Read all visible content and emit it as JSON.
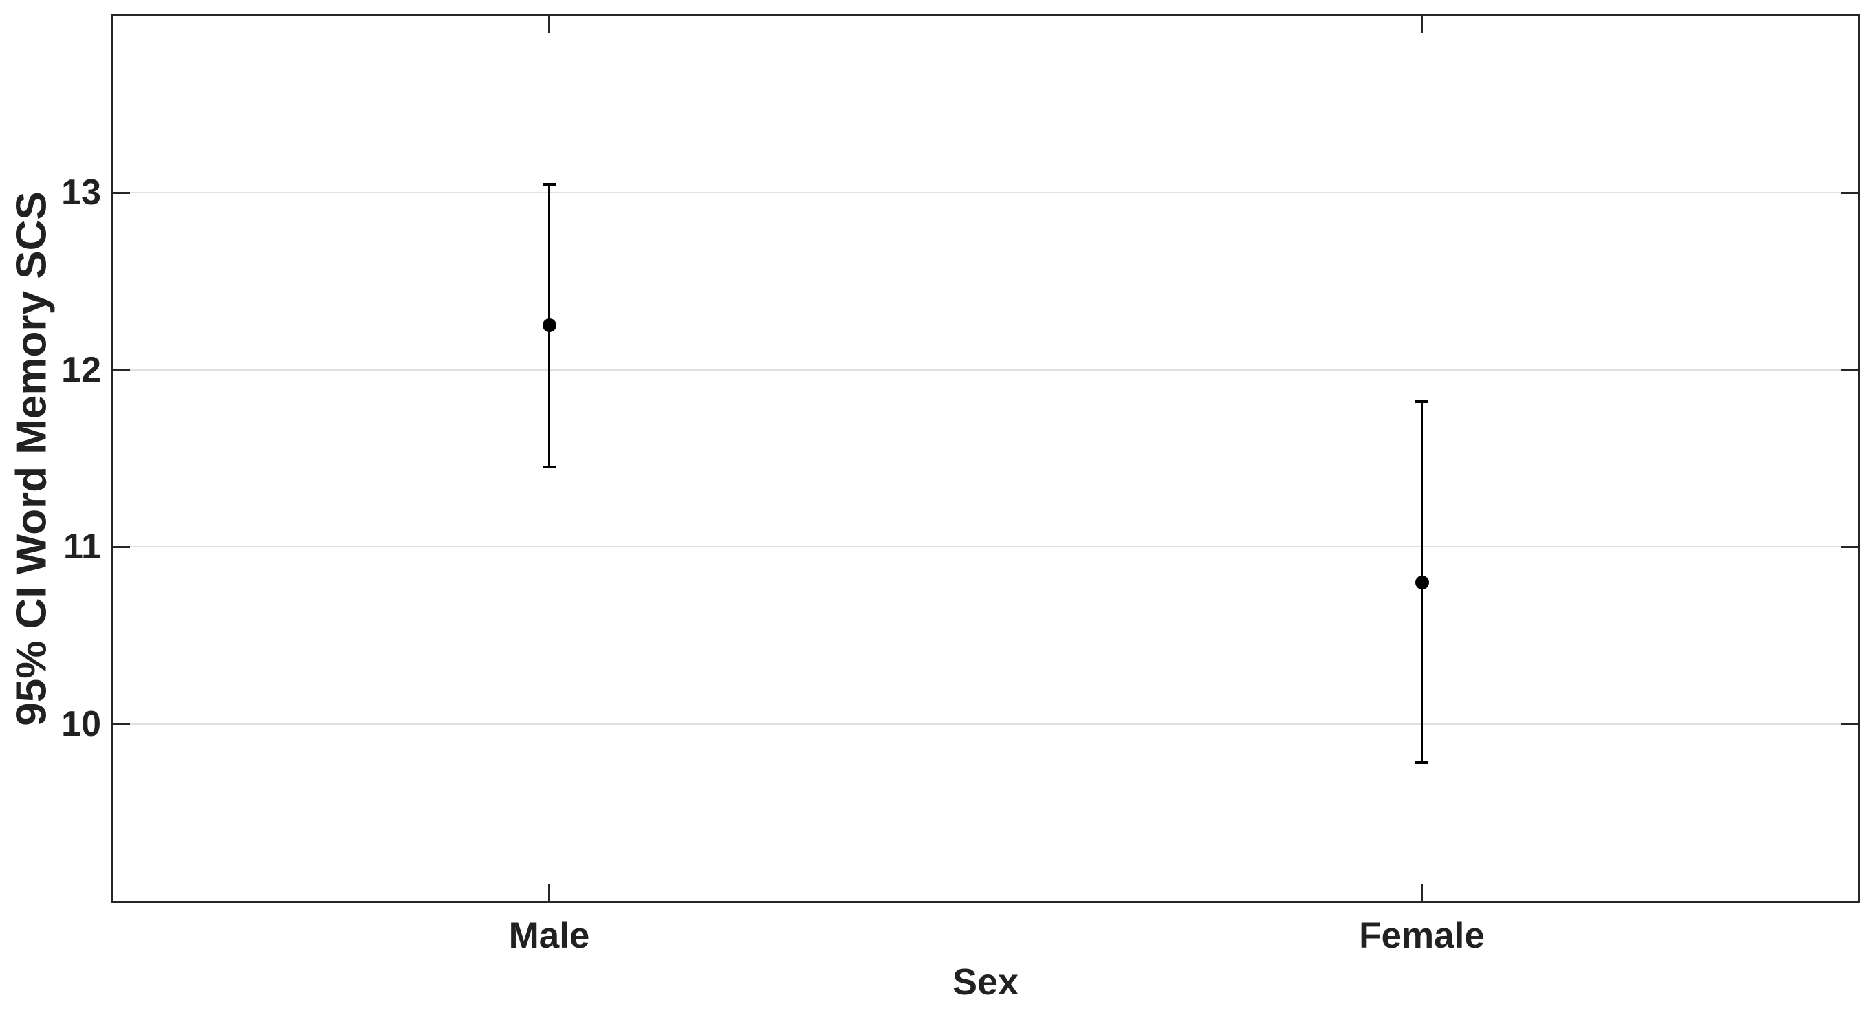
{
  "chart_data": {
    "type": "errorbar",
    "title": "",
    "xlabel": "Sex",
    "ylabel": "95% CI Word Memory SCS",
    "categories": [
      "Male",
      "Female"
    ],
    "series": [
      {
        "name": "95% CI Word Memory SCS",
        "means": [
          12.25,
          10.8
        ],
        "ci_low": [
          11.45,
          9.78
        ],
        "ci_high": [
          13.05,
          11.82
        ]
      }
    ],
    "ylim": [
      9,
      14
    ],
    "yticks": [
      10,
      11,
      12,
      13
    ],
    "grid": "horizontal-gridlines-at-yticks",
    "legend": "none",
    "marker": "filled-circle",
    "colors": {
      "marker": "#000000",
      "error_line": "#000000",
      "grid": "#e0e0e0",
      "frame": "#262626",
      "text": "#212121",
      "background": "#ffffff"
    }
  }
}
